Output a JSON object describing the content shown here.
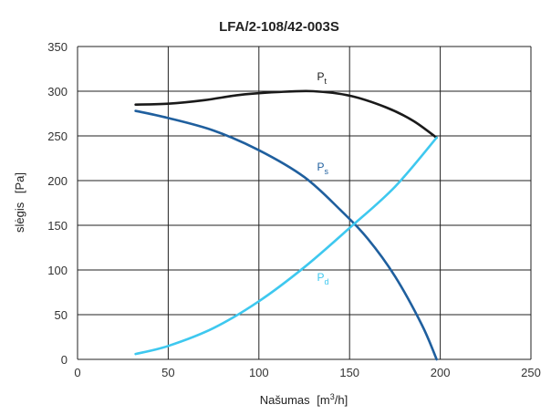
{
  "chart_data": {
    "type": "line",
    "title": "LFA/2-108/42-003S",
    "xlabel": {
      "name": "Našumas",
      "unit_prefix": "[m",
      "unit_sup": "3",
      "unit_suffix": "/h]"
    },
    "ylabel": {
      "name": "slėgis",
      "unit": "[Pa]"
    },
    "xlim": [
      0,
      250
    ],
    "ylim": [
      0,
      350
    ],
    "xticks": [
      0,
      50,
      100,
      150,
      200,
      250
    ],
    "yticks": [
      0,
      50,
      100,
      150,
      200,
      250,
      300,
      350
    ],
    "grid": true,
    "series": [
      {
        "name": "P",
        "sub": "t",
        "color": "#1a1a1a",
        "label_at": [
          128,
          312
        ],
        "x": [
          32,
          50,
          70,
          90,
          110,
          130,
          150,
          170,
          185,
          198
        ],
        "y": [
          285,
          286,
          290,
          296,
          299,
          300,
          295,
          282,
          267,
          248
        ]
      },
      {
        "name": "P",
        "sub": "s",
        "color": "#1f5f9e",
        "label_at": [
          128,
          211
        ],
        "x": [
          32,
          50,
          75,
          100,
          125,
          145,
          160,
          175,
          190,
          198
        ],
        "y": [
          278,
          270,
          256,
          234,
          204,
          167,
          135,
          93,
          38,
          0
        ]
      },
      {
        "name": "P",
        "sub": "d",
        "color": "#3ec8ef",
        "label_at": [
          128,
          88
        ],
        "x": [
          32,
          50,
          75,
          100,
          125,
          150,
          175,
          198
        ],
        "y": [
          6,
          15,
          35,
          65,
          103,
          147,
          193,
          248
        ]
      }
    ]
  }
}
